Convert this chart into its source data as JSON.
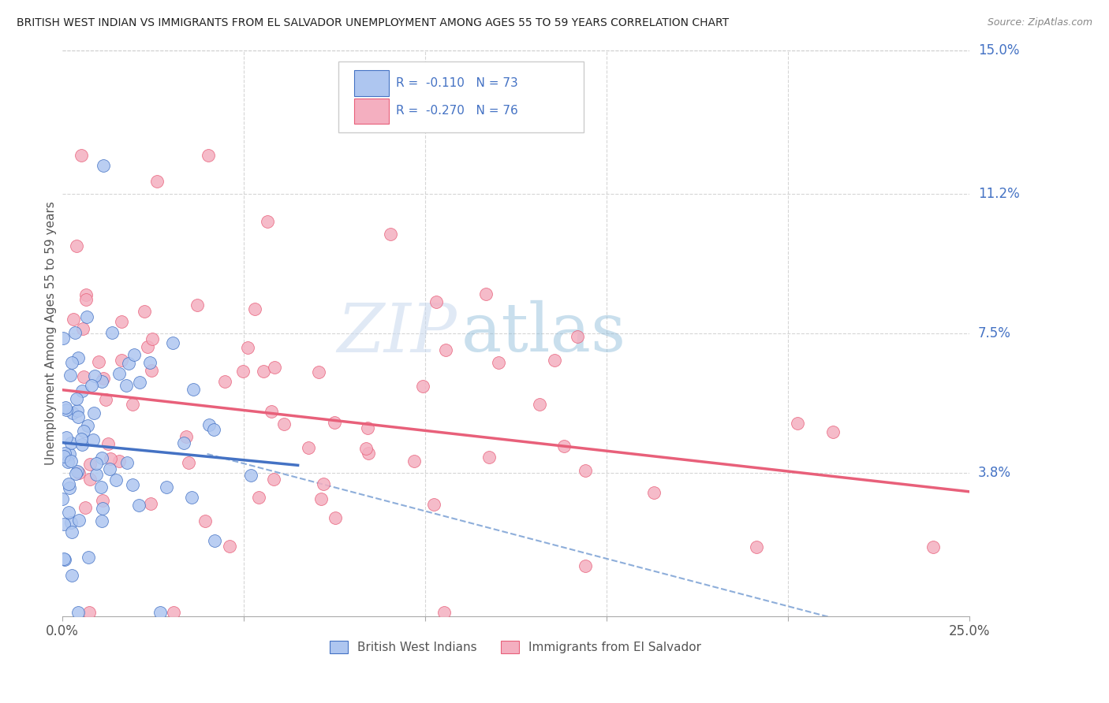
{
  "title": "BRITISH WEST INDIAN VS IMMIGRANTS FROM EL SALVADOR UNEMPLOYMENT AMONG AGES 55 TO 59 YEARS CORRELATION CHART",
  "source": "Source: ZipAtlas.com",
  "ylabel": "Unemployment Among Ages 55 to 59 years",
  "xlim": [
    0.0,
    0.25
  ],
  "ylim": [
    0.0,
    0.15
  ],
  "ytick_positions": [
    0.038,
    0.075,
    0.112,
    0.15
  ],
  "ytick_labels": [
    "3.8%",
    "7.5%",
    "11.2%",
    "15.0%"
  ],
  "watermark_top": "ZIP",
  "watermark_bot": "atlas",
  "blue_color": "#4472c4",
  "blue_scatter_color": "#aec6f0",
  "pink_color": "#e8607a",
  "pink_scatter_color": "#f4afc0",
  "dash_color": "#7aa0d4",
  "background_color": "#ffffff",
  "grid_color": "#cccccc",
  "title_color": "#222222",
  "watermark_color_zip": "#c0cfe8",
  "watermark_color_atlas": "#90b8d8",
  "right_label_color": "#4472c4",
  "legend_text_color": "#4472c4"
}
